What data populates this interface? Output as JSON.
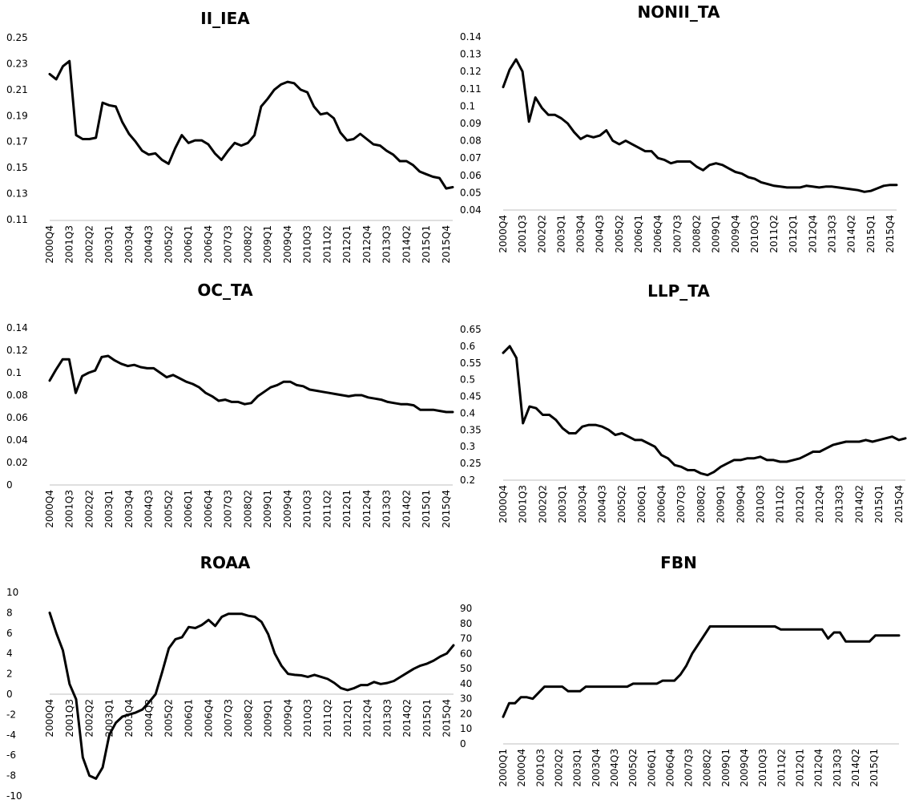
{
  "chart_data": [
    {
      "type": "line",
      "title": "II_IEA",
      "ylim": [
        0.11,
        0.25
      ],
      "yticks": [
        "0.25",
        "0.23",
        "0.21",
        "0.19",
        "0.17",
        "0.15",
        "0.13",
        "0.11"
      ],
      "xstart": "2000Q4",
      "xend": "2016Q1",
      "xtick_labels": [
        "2000Q4",
        "2001Q3",
        "2002Q2",
        "2003Q1",
        "2003Q4",
        "2004Q3",
        "2005Q2",
        "2006Q1",
        "2006Q4",
        "2007Q3",
        "2008Q2",
        "2009Q1",
        "2009Q4",
        "2010Q3",
        "2011Q2",
        "2012Q1",
        "2012Q4",
        "2013Q3",
        "2014Q2",
        "2015Q1",
        "2015Q4"
      ],
      "grid": false,
      "series": [
        {
          "values": [
            0.222,
            0.218,
            0.228,
            0.232,
            0.175,
            0.172,
            0.172,
            0.173,
            0.2,
            0.198,
            0.197,
            0.185,
            0.176,
            0.17,
            0.163,
            0.16,
            0.161,
            0.156,
            0.153,
            0.165,
            0.175,
            0.169,
            0.171,
            0.171,
            0.168,
            0.161,
            0.156,
            0.163,
            0.169,
            0.167,
            0.169,
            0.175,
            0.197,
            0.203,
            0.21,
            0.214,
            0.216,
            0.215,
            0.21,
            0.208,
            0.197,
            0.191,
            0.192,
            0.188,
            0.177,
            0.171,
            0.172,
            0.176,
            0.172,
            0.168,
            0.167,
            0.163,
            0.16,
            0.155,
            0.155,
            0.152,
            0.147,
            0.145,
            0.143,
            0.142,
            0.134,
            0.135
          ]
        }
      ]
    },
    {
      "type": "line",
      "title": "NONII_TA",
      "ylim": [
        0.04,
        0.14
      ],
      "yticks": [
        "0.14",
        "0.13",
        "0.12",
        "0.11",
        "0.1",
        "0.09",
        "0.08",
        "0.07",
        "0.06",
        "0.05",
        "0.04"
      ],
      "xstart": "2000Q4",
      "xend": "2016Q1",
      "xtick_labels": [
        "2000Q4",
        "2001Q3",
        "2002Q2",
        "2003Q1",
        "2003Q4",
        "2004Q3",
        "2005Q2",
        "2006Q1",
        "2006Q4",
        "2007Q3",
        "2008Q2",
        "2009Q1",
        "2009Q4",
        "2010Q3",
        "2011Q2",
        "2012Q1",
        "2012Q4",
        "2013Q3",
        "2014Q2",
        "2015Q1",
        "2015Q4"
      ],
      "grid": false,
      "series": [
        {
          "values": [
            0.111,
            0.121,
            0.127,
            0.12,
            0.091,
            0.105,
            0.099,
            0.095,
            0.095,
            0.093,
            0.09,
            0.085,
            0.081,
            0.083,
            0.082,
            0.083,
            0.086,
            0.08,
            0.078,
            0.08,
            0.078,
            0.076,
            0.074,
            0.074,
            0.07,
            0.069,
            0.067,
            0.068,
            0.068,
            0.068,
            0.065,
            0.063,
            0.066,
            0.067,
            0.066,
            0.064,
            0.062,
            0.061,
            0.059,
            0.058,
            0.056,
            0.055,
            0.054,
            0.0535,
            0.053,
            0.053,
            0.053,
            0.054,
            0.0535,
            0.053,
            0.0535,
            0.0535,
            0.053,
            0.0525,
            0.052,
            0.0515,
            0.0505,
            0.051,
            0.0525,
            0.054,
            0.0545,
            0.0545
          ]
        }
      ]
    },
    {
      "type": "line",
      "title": "OC_TA",
      "ylim": [
        0,
        0.14
      ],
      "yticks": [
        "0.14",
        "0.12",
        "0.1",
        "0.08",
        "0.06",
        "0.04",
        "0.02",
        "0"
      ],
      "xstart": "2000Q4",
      "xend": "2016Q1",
      "xtick_labels": [
        "2000Q4",
        "2001Q3",
        "2002Q2",
        "2003Q1",
        "2003Q4",
        "2004Q3",
        "2005Q2",
        "2006Q1",
        "2006Q4",
        "2007Q3",
        "2008Q2",
        "2009Q1",
        "2009Q4",
        "2010Q3",
        "2011Q2",
        "2012Q1",
        "2012Q4",
        "2013Q3",
        "2014Q2",
        "2015Q1",
        "2015Q4"
      ],
      "grid": false,
      "series": [
        {
          "values": [
            0.093,
            0.103,
            0.112,
            0.112,
            0.082,
            0.097,
            0.1,
            0.102,
            0.114,
            0.115,
            0.111,
            0.108,
            0.106,
            0.107,
            0.105,
            0.104,
            0.104,
            0.1,
            0.096,
            0.098,
            0.095,
            0.092,
            0.09,
            0.087,
            0.082,
            0.079,
            0.075,
            0.076,
            0.074,
            0.074,
            0.072,
            0.073,
            0.079,
            0.083,
            0.087,
            0.089,
            0.092,
            0.092,
            0.089,
            0.088,
            0.085,
            0.084,
            0.083,
            0.082,
            0.081,
            0.08,
            0.079,
            0.08,
            0.08,
            0.078,
            0.077,
            0.076,
            0.074,
            0.073,
            0.072,
            0.072,
            0.071,
            0.067,
            0.067,
            0.067,
            0.066,
            0.065,
            0.065
          ]
        }
      ]
    },
    {
      "type": "line",
      "title": "LLP_TA",
      "ylim": [
        0.2,
        0.65
      ],
      "yticks": [
        "0.65",
        "0.6",
        "0.55",
        "0.5",
        "0.45",
        "0.4",
        "0.35",
        "0.3",
        "0.25",
        "0.2"
      ],
      "xstart": "2000Q4",
      "xend": "2016Q1",
      "xtick_labels": [
        "2000Q4",
        "2001Q3",
        "2002Q2",
        "2003Q1",
        "2003Q4",
        "2004Q3",
        "2005Q2",
        "2006Q1",
        "2006Q4",
        "2007Q3",
        "2008Q2",
        "2009Q1",
        "2009Q4",
        "2010Q3",
        "2011Q2",
        "2012Q1",
        "2012Q4",
        "2013Q3",
        "2014Q2",
        "2015Q1",
        "2015Q4"
      ],
      "grid": false,
      "series": [
        {
          "values": [
            0.58,
            0.6,
            0.565,
            0.37,
            0.42,
            0.415,
            0.395,
            0.395,
            0.38,
            0.355,
            0.34,
            0.34,
            0.36,
            0.365,
            0.365,
            0.36,
            0.35,
            0.335,
            0.34,
            0.33,
            0.32,
            0.32,
            0.31,
            0.3,
            0.275,
            0.265,
            0.245,
            0.24,
            0.23,
            0.23,
            0.22,
            0.215,
            0.225,
            0.24,
            0.25,
            0.26,
            0.26,
            0.265,
            0.265,
            0.27,
            0.26,
            0.26,
            0.255,
            0.255,
            0.26,
            0.265,
            0.275,
            0.285,
            0.285,
            0.295,
            0.305,
            0.31,
            0.315,
            0.315,
            0.315,
            0.32,
            0.315,
            0.32,
            0.325,
            0.33,
            0.32,
            0.325
          ]
        }
      ]
    },
    {
      "type": "line",
      "title": "ROAA",
      "ylim": [
        -10,
        10
      ],
      "yticks": [
        "10",
        "8",
        "6",
        "4",
        "2",
        "0",
        "-2",
        "-4",
        "-6",
        "-8",
        "-10"
      ],
      "xstart": "2000Q4",
      "xend": "2016Q1",
      "xtick_labels": [
        "2000Q4",
        "2001Q3",
        "2002Q2",
        "2003Q1",
        "2003Q4",
        "2004Q3",
        "2005Q2",
        "2006Q1",
        "2006Q4",
        "2007Q3",
        "2008Q2",
        "2009Q1",
        "2009Q4",
        "2010Q3",
        "2011Q2",
        "2012Q1",
        "2012Q4",
        "2013Q3",
        "2014Q2",
        "2015Q1",
        "2015Q4"
      ],
      "grid": false,
      "series": [
        {
          "values": [
            8,
            6,
            4.3,
            1,
            -0.5,
            -6.2,
            -8,
            -8.3,
            -7.2,
            -4,
            -2.8,
            -2.2,
            -2.0,
            -1.8,
            -1.5,
            -0.8,
            0,
            2.2,
            4.5,
            5.4,
            5.6,
            6.6,
            6.5,
            6.8,
            7.3,
            6.7,
            7.6,
            7.9,
            7.9,
            7.9,
            7.7,
            7.6,
            7.1,
            5.9,
            4,
            2.8,
            2,
            1.9,
            1.85,
            1.7,
            1.9,
            1.7,
            1.5,
            1.1,
            0.6,
            0.4,
            0.6,
            0.9,
            0.9,
            1.2,
            1.0,
            1.1,
            1.3,
            1.7,
            2.1,
            2.5,
            2.8,
            3,
            3.3,
            3.7,
            4.0,
            4.8
          ]
        }
      ]
    },
    {
      "type": "line",
      "title": "FBN",
      "ylim": [
        0,
        90
      ],
      "yticks": [
        "90",
        "80",
        "70",
        "60",
        "50",
        "40",
        "30",
        "20",
        "10",
        "0"
      ],
      "xstart": "2000Q1",
      "xend": "2016Q1",
      "xtick_labels": [
        "2000Q1",
        "2000Q4",
        "2001Q3",
        "2002Q2",
        "2003Q1",
        "2003Q4",
        "2004Q3",
        "2005Q2",
        "2006Q1",
        "2006Q4",
        "2007Q3",
        "2008Q2",
        "2009Q1",
        "2009Q4",
        "2010Q3",
        "2011Q2",
        "2012Q1",
        "2012Q4",
        "2013Q3",
        "2014Q2",
        "2015Q1"
      ],
      "grid": false,
      "series": [
        {
          "values": [
            18,
            27,
            27,
            31,
            31,
            30,
            34,
            38,
            38,
            38,
            38,
            35,
            35,
            35,
            38,
            38,
            38,
            38,
            38,
            38,
            38,
            38,
            40,
            40,
            40,
            40,
            40,
            42,
            42,
            42,
            46,
            52,
            60,
            66,
            72,
            78,
            78,
            78,
            78,
            78,
            78,
            78,
            78,
            78,
            78,
            78,
            78,
            76,
            76,
            76,
            76,
            76,
            76,
            76,
            76,
            70,
            74,
            74,
            68,
            68,
            68,
            68,
            68,
            72,
            72,
            72,
            72,
            72
          ]
        }
      ]
    }
  ]
}
